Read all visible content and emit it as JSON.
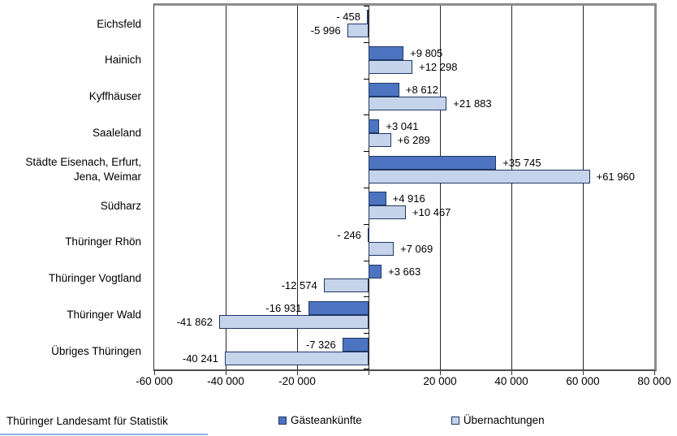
{
  "chart_data": {
    "type": "bar",
    "orientation": "horizontal",
    "title": "",
    "xlabel": "",
    "ylabel": "",
    "grid": true,
    "legend_position": "bottom",
    "categories": [
      "Eichsfeld",
      "Hainich",
      "Kyffhäuser",
      "Saaleland",
      "Städte Eisenach, Erfurt,\nJena, Weimar",
      "Südharz",
      "Thüringer Rhön",
      "Thüringer Vogtland",
      "Thüringer Wald",
      "Übriges Thüringen"
    ],
    "series": [
      {
        "name": "Gästeankünfte",
        "color": "#4D74C1",
        "border_color": "#203864",
        "values": [
          -458,
          9805,
          8612,
          3041,
          35745,
          4916,
          -246,
          3663,
          -16931,
          -7326
        ],
        "labels": [
          "- 458",
          "+9 805",
          "+8 612",
          "+3 041",
          "+35 745",
          "+4 916",
          "- 246",
          "+3 663",
          "-16 931",
          "-7 326"
        ]
      },
      {
        "name": "Übernachtungen",
        "color": "#C5D3EB",
        "border_color": "#203864",
        "values": [
          -5996,
          12298,
          21883,
          6289,
          61960,
          10467,
          7069,
          -12574,
          -41862,
          -40241
        ],
        "labels": [
          "-5 996",
          "+12 298",
          "+21 883",
          "+6 289",
          "+61 960",
          "+10 467",
          "+7 069",
          "-12 574",
          "-41 862",
          "-40 241"
        ]
      }
    ],
    "x_axis": {
      "min": -60000,
      "max": 80000,
      "ticks": [
        {
          "value": -60000,
          "label": "-60 000"
        },
        {
          "value": -40000,
          "label": "-40 000"
        },
        {
          "value": -20000,
          "label": "-20 000"
        },
        {
          "value": 0,
          "label": ""
        },
        {
          "value": 20000,
          "label": "20 000"
        },
        {
          "value": 40000,
          "label": "40 000"
        },
        {
          "value": 60000,
          "label": "60 000"
        },
        {
          "value": 80000,
          "label": "80 000"
        }
      ]
    }
  },
  "footer": {
    "source": "Thüringer Landesamt für Statistik"
  }
}
